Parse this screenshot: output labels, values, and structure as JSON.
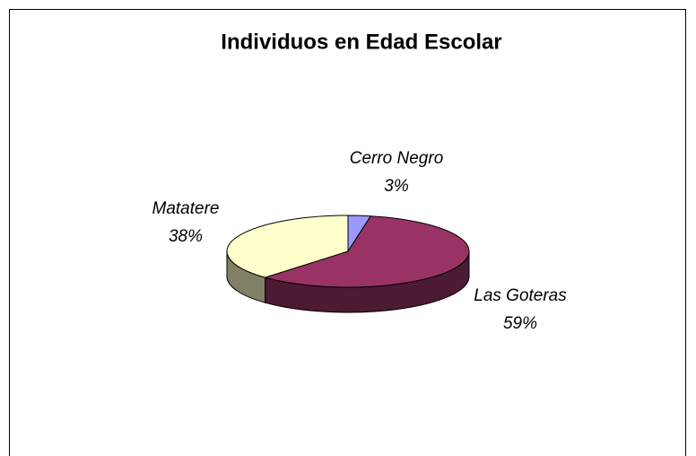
{
  "chart_data": {
    "type": "pie",
    "title": "Individuos en Edad Escolar",
    "categories": [
      "Cerro Negro",
      "Las Goteras",
      "Matatere"
    ],
    "values": [
      3,
      59,
      38
    ],
    "value_labels": [
      "3%",
      "59%",
      "38%"
    ],
    "colors": [
      "#9999ff",
      "#993366",
      "#ffffcc"
    ],
    "three_d": true
  }
}
